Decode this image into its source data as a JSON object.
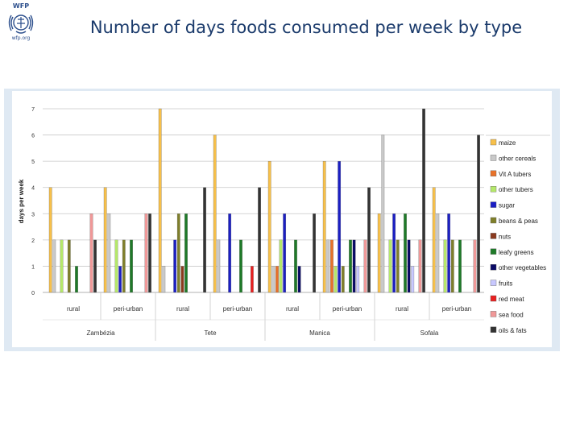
{
  "logo": {
    "top": "WFP",
    "bottom": "wfp.org"
  },
  "title": "Number of days foods consumed per week by type",
  "chart_data": {
    "type": "bar",
    "title": "Number of days foods consumed per week by type",
    "ylabel": "days per week",
    "xlabel": "",
    "ylim": [
      0,
      7
    ],
    "yticks": [
      "0",
      "1",
      "2",
      "3",
      "4",
      "5",
      "6",
      "7"
    ],
    "grid": true,
    "legend_position": "right",
    "series_names": [
      "maize",
      "other cereals",
      "Vit A tubers",
      "other tubers",
      "sugar",
      "beans & peas",
      "nuts",
      "leafy greens",
      "other vegetables",
      "fruits",
      "red meat",
      "sea food",
      "oils & fats"
    ],
    "colors": [
      "#f7c04a",
      "#c9c9c9",
      "#e8722a",
      "#b5e86a",
      "#1b1fc4",
      "#7f7f2a",
      "#8a3a1e",
      "#1e7a28",
      "#0a0a66",
      "#c8c8ff",
      "#e82020",
      "#f09898",
      "#333333"
    ],
    "groups": [
      {
        "label": "rural",
        "region": "Zambézia",
        "values": [
          4,
          2,
          0,
          2,
          0,
          2,
          0,
          1,
          0,
          0,
          0,
          3,
          2
        ]
      },
      {
        "label": "peri-urban",
        "region": "Zambézia",
        "values": [
          4,
          3,
          0,
          2,
          1,
          2,
          0,
          2,
          0,
          0,
          0,
          3,
          3
        ]
      },
      {
        "label": "rural",
        "region": "Tete",
        "values": [
          7,
          1,
          0,
          0,
          2,
          3,
          1,
          3,
          0,
          0,
          0,
          0,
          4
        ]
      },
      {
        "label": "peri-urban",
        "region": "Tete",
        "values": [
          6,
          2,
          0,
          0,
          3,
          0,
          0,
          2,
          0,
          0,
          1,
          0,
          4
        ]
      },
      {
        "label": "rural",
        "region": "Manica",
        "values": [
          5,
          1,
          1,
          2,
          3,
          0,
          0,
          2,
          1,
          0,
          0,
          0,
          3
        ]
      },
      {
        "label": "peri-urban",
        "region": "Manica",
        "values": [
          5,
          2,
          2,
          1,
          5,
          1,
          0,
          2,
          2,
          1,
          0,
          2,
          4
        ]
      },
      {
        "label": "rural",
        "region": "Sofala",
        "values": [
          3,
          6,
          0,
          2,
          3,
          2,
          0,
          3,
          2,
          1,
          0,
          2,
          7
        ]
      },
      {
        "label": "peri-urban",
        "region": "Sofala",
        "values": [
          4,
          3,
          0,
          2,
          3,
          2,
          0,
          2,
          0,
          0,
          0,
          2,
          6
        ]
      }
    ],
    "regions": [
      "Zambézia",
      "Tete",
      "Manica",
      "Sofala"
    ]
  }
}
